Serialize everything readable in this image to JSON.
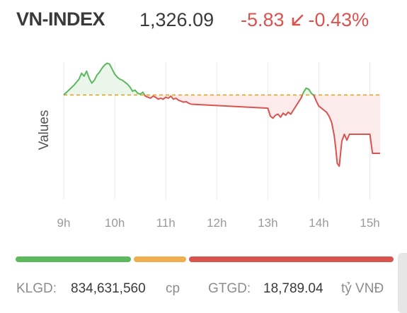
{
  "header": {
    "index_name": "VN-INDEX",
    "index_value": "1,326.09",
    "change_points": "-5.83",
    "change_percent": "-0.43%",
    "direction_icon": "arrow-down-left-icon"
  },
  "colors": {
    "up": "#5cb85c",
    "down": "#d9534f",
    "reference": "#e0a526",
    "up_fill": "#eaf6ea",
    "down_fill": "#fcebeb",
    "grid": "#e9e9e9",
    "unchanged": "#f0ad4e"
  },
  "chart_data": {
    "type": "line",
    "title": "",
    "xlabel": "",
    "ylabel": "Values",
    "grid": true,
    "x_ticks": [
      "9h",
      "10h",
      "11h",
      "12h",
      "13h",
      "14h",
      "15h"
    ],
    "reference_value": 1331.92,
    "ylim": [
      1321.5,
      1335.2
    ],
    "xlim": [
      9.0,
      15.2
    ],
    "series": [
      {
        "x": [
          9.0,
          9.1,
          9.2,
          9.3,
          9.35,
          9.4,
          9.45,
          9.5,
          9.55,
          9.6,
          9.65,
          9.7,
          9.75,
          9.8,
          9.85,
          9.9,
          9.95,
          10.0,
          10.05,
          10.1,
          10.15,
          10.2,
          10.25,
          10.3,
          10.35,
          10.4,
          10.45,
          10.5,
          10.55,
          10.6,
          10.65,
          10.7,
          10.75,
          10.8,
          10.85,
          10.9,
          10.95,
          11.0,
          11.05,
          11.1,
          11.15,
          11.2,
          11.25,
          11.3,
          11.35,
          11.4,
          11.45,
          11.5,
          13.0,
          13.05,
          13.1,
          13.15,
          13.2,
          13.25,
          13.3,
          13.35,
          13.4,
          13.45,
          13.5,
          13.55,
          13.6,
          13.65,
          13.7,
          13.75,
          13.8,
          13.85,
          13.9,
          13.95,
          14.0,
          14.05,
          14.1,
          14.15,
          14.2,
          14.25,
          14.3,
          14.33,
          14.36,
          14.4,
          14.45,
          14.5,
          14.55,
          14.6,
          14.7,
          14.8,
          14.9,
          15.0,
          15.05,
          15.1,
          15.15,
          15.2
        ],
        "y": [
          1331.92,
          1332.4,
          1332.9,
          1333.5,
          1334.1,
          1333.8,
          1334.3,
          1333.6,
          1333.1,
          1333.4,
          1333.9,
          1334.2,
          1334.6,
          1334.9,
          1335.1,
          1335.0,
          1334.5,
          1334.0,
          1333.7,
          1333.5,
          1333.4,
          1333.2,
          1333.0,
          1332.7,
          1332.3,
          1332.4,
          1332.1,
          1332.0,
          1332.2,
          1331.8,
          1331.7,
          1331.6,
          1331.8,
          1331.7,
          1331.5,
          1331.6,
          1331.5,
          1331.7,
          1331.6,
          1331.8,
          1331.5,
          1331.6,
          1331.4,
          1331.3,
          1331.2,
          1331.25,
          1331.1,
          1331.0,
          1330.6,
          1329.8,
          1329.6,
          1329.9,
          1330.0,
          1329.7,
          1330.1,
          1329.9,
          1330.2,
          1330.0,
          1330.4,
          1330.8,
          1331.2,
          1331.6,
          1332.2,
          1332.6,
          1332.5,
          1332.1,
          1331.9,
          1331.3,
          1330.8,
          1330.6,
          1330.4,
          1330.2,
          1329.8,
          1329.2,
          1327.9,
          1326.6,
          1325.1,
          1324.8,
          1327.3,
          1328.0,
          1327.4,
          1328.0,
          1328.0,
          1328.0,
          1328.0,
          1328.0,
          1326.09,
          1326.09,
          1326.09,
          1326.09
        ]
      }
    ]
  },
  "breadth": {
    "advancers_fraction": 0.31,
    "unchanged_fraction": 0.14,
    "decliners_fraction": 0.55
  },
  "footer": {
    "volume_label": "KLGD:",
    "volume_value": "834,631,560",
    "volume_unit": "cp",
    "value_label": "GTGD:",
    "value_value": "18,789.04",
    "value_unit": "tỷ VNĐ"
  }
}
